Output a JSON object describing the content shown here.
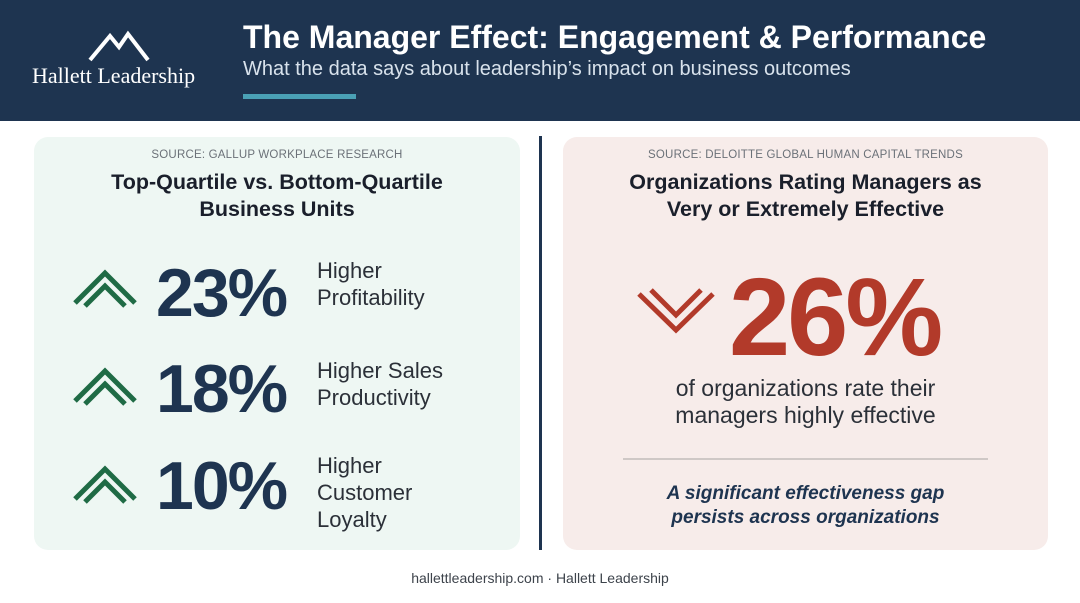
{
  "header": {
    "brand": "Hallett Leadership",
    "logo_icon": "mountain-icon",
    "title": "The Manager Effect: Engagement & Performance",
    "subtitle": "What the data says about leadership’s impact on business outcomes"
  },
  "left_panel": {
    "source": "SOURCE: GALLUP WORKPLACE RESEARCH",
    "title_line1": "Top-Quartile vs. Bottom-Quartile",
    "title_line2": "Business Units",
    "stats": [
      {
        "icon": "chevron-up-icon",
        "value": "23%",
        "desc_line1": "Higher",
        "desc_line2": "Profitability"
      },
      {
        "icon": "chevron-up-icon",
        "value": "18%",
        "desc_line1": "Higher Sales",
        "desc_line2": "Productivity"
      },
      {
        "icon": "chevron-up-icon",
        "value": "10%",
        "desc_line1": "Higher",
        "desc_line2": "Customer",
        "desc_line3": "Loyalty"
      }
    ]
  },
  "right_panel": {
    "source": "SOURCE: DELOITTE GLOBAL HUMAN CAPITAL TRENDS",
    "title_line1": "Organizations Rating Managers as",
    "title_line2": "Very or Extremely Effective",
    "icon": "chevron-down-icon",
    "value": "26%",
    "caption_line1": "of organizations rate their",
    "caption_line2": "managers highly effective",
    "callout_line1": "A significant effectiveness gap",
    "callout_line2": "persists across organizations"
  },
  "footer": {
    "text": "hallettleadership.com · Hallett Leadership"
  },
  "colors": {
    "navy": "#1e3450",
    "teal_accent": "#4aa0b5",
    "green_chevron": "#1f6b45",
    "red": "#b23a2a",
    "left_panel_bg": "#eef7f3",
    "right_panel_bg": "#f7ecea"
  }
}
